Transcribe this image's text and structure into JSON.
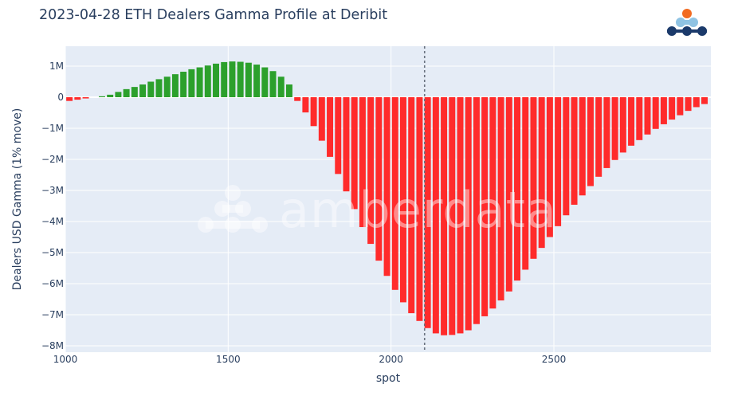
{
  "header": {
    "title": "2023-04-28 ETH Dealers Gamma Profile at Deribit",
    "logo_name": "amberdata-logo"
  },
  "watermark": {
    "text": "amberdata"
  },
  "colors": {
    "positive": "#2ca02c",
    "negative": "#ff2b2b",
    "plot_bg": "#e5ecf6",
    "grid": "#ffffff",
    "spot_line": "#6a7380",
    "text": "#2a3f5f",
    "logo_orange": "#f26b21",
    "logo_light_blue": "#8fc3e3",
    "logo_navy": "#1b3a6b"
  },
  "axes": {
    "xlabel": "spot",
    "ylabel": "Dealers USD Gamma (1% move)",
    "xticks": [
      "1000",
      "1500",
      "2000",
      "2500"
    ],
    "yticks": [
      "1M",
      "0",
      "−1M",
      "−2M",
      "−3M",
      "−4M",
      "−5M",
      "−6M",
      "−7M",
      "−8M"
    ]
  },
  "chart_data": {
    "type": "bar",
    "title": "2023-04-28 ETH Dealers Gamma Profile at Deribit",
    "xlabel": "spot",
    "ylabel": "Dealers USD Gamma (1% move)",
    "xlim": [
      1000,
      2975
    ],
    "ylim": [
      -8200000,
      1640000
    ],
    "grid": true,
    "legend": "none",
    "annotations": [
      {
        "type": "vline",
        "x": 2103,
        "style": "dotted",
        "meaning": "current spot"
      }
    ],
    "bar_step": 25,
    "x": [
      1000,
      1025,
      1050,
      1075,
      1100,
      1125,
      1150,
      1175,
      1200,
      1225,
      1250,
      1275,
      1300,
      1325,
      1350,
      1375,
      1400,
      1425,
      1450,
      1475,
      1500,
      1525,
      1550,
      1575,
      1600,
      1625,
      1650,
      1675,
      1700,
      1725,
      1750,
      1775,
      1800,
      1825,
      1850,
      1875,
      1900,
      1925,
      1950,
      1975,
      2000,
      2025,
      2050,
      2075,
      2100,
      2125,
      2150,
      2175,
      2200,
      2225,
      2250,
      2275,
      2300,
      2325,
      2350,
      2375,
      2400,
      2425,
      2450,
      2475,
      2500,
      2525,
      2550,
      2575,
      2600,
      2625,
      2650,
      2675,
      2700,
      2725,
      2750,
      2775,
      2800,
      2825,
      2850,
      2875,
      2900,
      2925,
      2950
    ],
    "values": [
      -120000,
      -80000,
      -40000,
      0,
      30000,
      80000,
      170000,
      260000,
      330000,
      410000,
      500000,
      580000,
      660000,
      740000,
      820000,
      900000,
      960000,
      1020000,
      1080000,
      1130000,
      1150000,
      1140000,
      1110000,
      1050000,
      960000,
      840000,
      660000,
      410000,
      -120000,
      -490000,
      -930000,
      -1400000,
      -1920000,
      -2470000,
      -3030000,
      -3600000,
      -4180000,
      -4720000,
      -5260000,
      -5750000,
      -6200000,
      -6600000,
      -6950000,
      -7200000,
      -7430000,
      -7600000,
      -7660000,
      -7650000,
      -7600000,
      -7500000,
      -7300000,
      -7050000,
      -6800000,
      -6540000,
      -6250000,
      -5900000,
      -5550000,
      -5200000,
      -4850000,
      -4500000,
      -4150000,
      -3800000,
      -3460000,
      -3160000,
      -2860000,
      -2560000,
      -2280000,
      -2020000,
      -1780000,
      -1560000,
      -1380000,
      -1200000,
      -1020000,
      -870000,
      -720000,
      -580000,
      -440000,
      -320000,
      -220000
    ]
  }
}
